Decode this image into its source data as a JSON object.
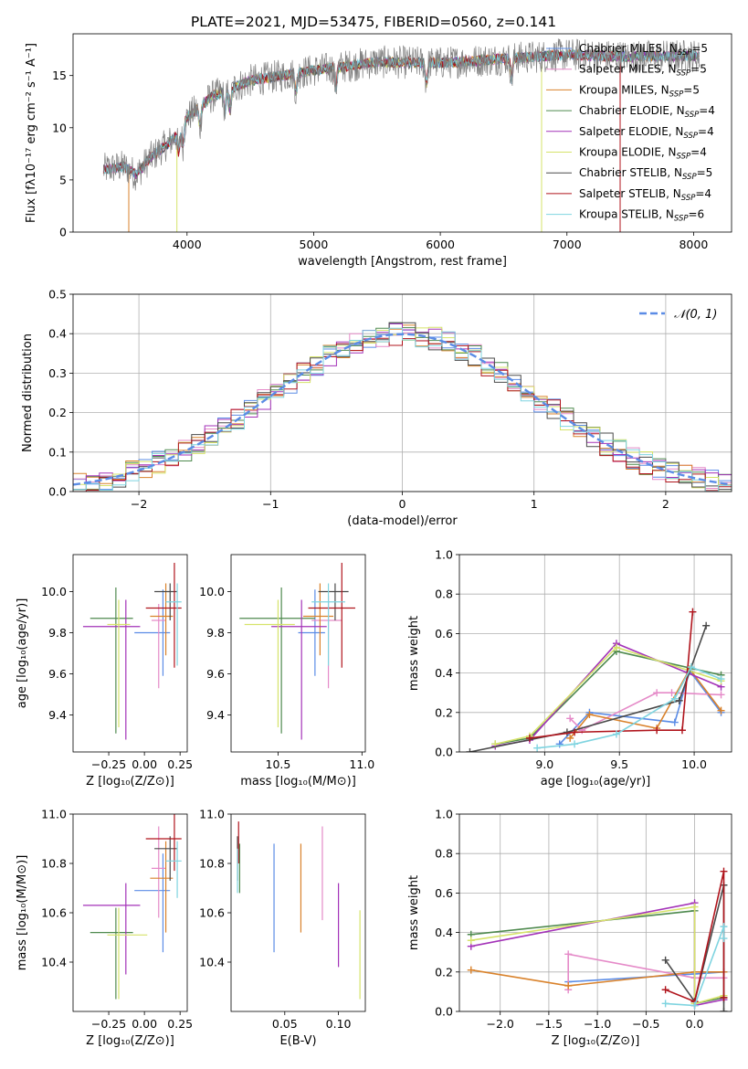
{
  "title": "PLATE=2021, MJD=53475, FIBERID=0560, z=0.141",
  "colors": {
    "chabrier_miles": "#5b8ce6",
    "salpeter_miles": "#e58ac8",
    "kroupa_miles": "#d9822b",
    "chabrier_elodie": "#4f8a4f",
    "salpeter_elodie": "#a332b8",
    "kroupa_elodie": "#d6e36a",
    "chabrier_stelib": "#4a4a4a",
    "salpeter_stelib": "#b0141c",
    "kroupa_stelib": "#7fd4e0",
    "data_line": "#808080",
    "normal_curve": "#5b8ce6"
  },
  "chart_data": [
    {
      "id": "spectrum",
      "type": "line",
      "title": "PLATE=2021, MJD=53475, FIBERID=0560, z=0.141",
      "xlabel": "wavelength [Angstrom, rest frame]",
      "ylabel": "Flux [fλ10⁻¹⁷ erg cm⁻² s⁻¹ A⁻¹]",
      "xlim": [
        3100,
        8300
      ],
      "ylim": [
        0,
        19
      ],
      "xticks": [
        4000,
        5000,
        6000,
        7000,
        8000
      ],
      "yticks": [
        0,
        5,
        10,
        15
      ],
      "legend_position": "top-right",
      "legend": [
        "Chabrier MILES, N_SSP=5",
        "Salpeter MILES, N_SSP=5",
        "Kroupa MILES, N_SSP=5",
        "Chabrier ELODIE, N_SSP=4",
        "Salpeter ELODIE, N_SSP=4",
        "Kroupa ELODIE, N_SSP=4",
        "Chabrier STELIB, N_SSP=5",
        "Salpeter STELIB, N_SSP=4",
        "Kroupa STELIB, N_SSP=6"
      ],
      "data_continuum": {
        "x": [
          3340,
          3500,
          3600,
          3700,
          3800,
          3900,
          4000,
          4200,
          4500,
          5000,
          5500,
          6000,
          6500,
          7000,
          7500,
          8000,
          8050
        ],
        "y": [
          6.0,
          6.3,
          5.5,
          7.0,
          8.0,
          9.0,
          11.0,
          13.0,
          14.5,
          15.5,
          16.3,
          16.2,
          16.6,
          17.0,
          16.8,
          16.9,
          16.8
        ]
      },
      "model_cutoffs": [
        {
          "series": "Kroupa MILES, N_SSP=5",
          "start": 3540
        },
        {
          "series": "Kroupa ELODIE, N_SSP=4",
          "start": 3920,
          "end": 6800
        },
        {
          "series": "Salpeter STELIB, N_SSP=4",
          "end": 7420
        }
      ],
      "grid": false
    },
    {
      "id": "residuals",
      "type": "line",
      "xlabel": "(data-model)/error",
      "ylabel": "Normed distribution",
      "xlim": [
        -2.5,
        2.5
      ],
      "ylim": [
        0,
        0.5
      ],
      "xticks": [
        -2,
        -1,
        0,
        1,
        2
      ],
      "yticks": [
        0.0,
        0.1,
        0.2,
        0.3,
        0.4,
        0.5
      ],
      "legend_position": "top-right",
      "legend": [
        "𝒩(0, 1)"
      ],
      "normal_curve": {
        "mean": 0,
        "sigma": 1
      },
      "histograms_bin_width": 0.1,
      "grid": true
    },
    {
      "id": "age_vs_Z",
      "type": "scatter",
      "xlabel": "Z [log₁₀(Z/Z⊙)]",
      "ylabel": "age  [log₁₀(age/yr)]",
      "xlim": [
        -0.5,
        0.3
      ],
      "ylim": [
        9.22,
        10.18
      ],
      "xticks": [
        -0.25,
        0.0,
        0.25
      ],
      "yticks": [
        9.4,
        9.6,
        9.8,
        10.0
      ],
      "points": [
        {
          "series": "Chabrier MILES",
          "x": 0.13,
          "xerr": [
            0.2,
            0.05
          ],
          "y": 9.8,
          "yerr": [
            0.21,
            0.21
          ]
        },
        {
          "series": "Salpeter MILES",
          "x": 0.1,
          "xerr": [
            0.05,
            0.05
          ],
          "y": 9.86,
          "yerr": [
            0.33,
            0.08
          ]
        },
        {
          "series": "Kroupa MILES",
          "x": 0.15,
          "xerr": [
            0.11,
            0.05
          ],
          "y": 9.88,
          "yerr": [
            0.19,
            0.16
          ]
        },
        {
          "series": "Chabrier ELODIE",
          "x": -0.2,
          "xerr": [
            0.18,
            0.12
          ],
          "y": 9.87,
          "yerr": [
            0.56,
            0.15
          ]
        },
        {
          "series": "Salpeter ELODIE",
          "x": -0.13,
          "xerr": [
            0.3,
            0.1
          ],
          "y": 9.83,
          "yerr": [
            0.55,
            0.13
          ]
        },
        {
          "series": "Kroupa ELODIE",
          "x": -0.18,
          "xerr": [
            0.08,
            0.08
          ],
          "y": 9.84,
          "yerr": [
            0.5,
            0.12
          ]
        },
        {
          "series": "Chabrier STELIB",
          "x": 0.18,
          "xerr": [
            0.11,
            0.05
          ],
          "y": 10.0,
          "yerr": [
            0.14,
            0.04
          ]
        },
        {
          "series": "Salpeter STELIB",
          "x": 0.21,
          "xerr": [
            0.2,
            0.05
          ],
          "y": 9.92,
          "yerr": [
            0.29,
            0.22
          ]
        },
        {
          "series": "Kroupa STELIB",
          "x": 0.23,
          "xerr": [
            0.08,
            0.03
          ],
          "y": 9.95,
          "yerr": [
            0.31,
            0.09
          ]
        }
      ]
    },
    {
      "id": "age_vs_mass",
      "type": "scatter",
      "xlabel": "mass [log₁₀(M/M⊙)]",
      "ylabel": "",
      "xlim": [
        10.22,
        11.02
      ],
      "ylim": [
        9.22,
        10.18
      ],
      "xticks": [
        10.5,
        11.0
      ],
      "yticks": [
        9.4,
        9.6,
        9.8,
        10.0
      ],
      "points": [
        {
          "series": "Chabrier MILES",
          "x": 10.72,
          "xerr": [
            0.1,
            0.06
          ],
          "y": 9.8,
          "yerr": [
            0.21,
            0.21
          ]
        },
        {
          "series": "Salpeter MILES",
          "x": 10.8,
          "xerr": [
            0.1,
            0.08
          ],
          "y": 9.86,
          "yerr": [
            0.33,
            0.12
          ]
        },
        {
          "series": "Kroupa MILES",
          "x": 10.75,
          "xerr": [
            0.1,
            0.08
          ],
          "y": 9.88,
          "yerr": [
            0.19,
            0.16
          ]
        },
        {
          "series": "Chabrier ELODIE",
          "x": 10.52,
          "xerr": [
            0.25,
            0.2
          ],
          "y": 9.87,
          "yerr": [
            0.56,
            0.15
          ]
        },
        {
          "series": "Salpeter ELODIE",
          "x": 10.64,
          "xerr": [
            0.18,
            0.15
          ],
          "y": 9.83,
          "yerr": [
            0.55,
            0.13
          ]
        },
        {
          "series": "Kroupa ELODIE",
          "x": 10.5,
          "xerr": [
            0.2,
            0.1
          ],
          "y": 9.84,
          "yerr": [
            0.5,
            0.12
          ]
        },
        {
          "series": "Chabrier STELIB",
          "x": 10.84,
          "xerr": [
            0.1,
            0.08
          ],
          "y": 10.0,
          "yerr": [
            0.14,
            0.04
          ]
        },
        {
          "series": "Salpeter STELIB",
          "x": 10.88,
          "xerr": [
            0.2,
            0.08
          ],
          "y": 9.92,
          "yerr": [
            0.29,
            0.22
          ]
        },
        {
          "series": "Kroupa STELIB",
          "x": 10.8,
          "xerr": [
            0.1,
            0.1
          ],
          "y": 9.95,
          "yerr": [
            0.31,
            0.09
          ]
        }
      ]
    },
    {
      "id": "weight_vs_age",
      "type": "line",
      "xlabel": "age  [log₁₀(age/yr)]",
      "ylabel": "mass weight",
      "xlim": [
        8.43,
        10.25
      ],
      "ylim": [
        0,
        1
      ],
      "xticks": [
        9.0,
        9.5,
        10.0
      ],
      "yticks": [
        0.0,
        0.2,
        0.4,
        0.6,
        0.8,
        1.0
      ],
      "grid": true,
      "series": [
        {
          "name": "Chabrier MILES",
          "x": [
            9.1,
            9.3,
            9.87,
            9.97,
            10.18
          ],
          "y": [
            0.04,
            0.2,
            0.15,
            0.41,
            0.2
          ]
        },
        {
          "name": "Salpeter MILES",
          "x": [
            9.17,
            9.25,
            9.75,
            9.85,
            10.18
          ],
          "y": [
            0.17,
            0.11,
            0.3,
            0.3,
            0.29
          ]
        },
        {
          "name": "Kroupa MILES",
          "x": [
            9.17,
            9.3,
            9.75,
            9.97,
            10.18
          ],
          "y": [
            0.07,
            0.19,
            0.12,
            0.42,
            0.21
          ]
        },
        {
          "name": "Chabrier ELODIE",
          "x": [
            8.67,
            8.9,
            9.48,
            10.18
          ],
          "y": [
            0.04,
            0.07,
            0.51,
            0.39
          ]
        },
        {
          "name": "Salpeter ELODIE",
          "x": [
            8.67,
            8.9,
            9.48,
            10.18
          ],
          "y": [
            0.03,
            0.06,
            0.55,
            0.33
          ]
        },
        {
          "name": "Kroupa ELODIE",
          "x": [
            8.67,
            8.9,
            9.48,
            10.18
          ],
          "y": [
            0.04,
            0.08,
            0.53,
            0.36
          ]
        },
        {
          "name": "Chabrier STELIB",
          "x": [
            8.5,
            9.15,
            9.9,
            10.08
          ],
          "y": [
            0.0,
            0.1,
            0.26,
            0.64
          ]
        },
        {
          "name": "Salpeter STELIB",
          "x": [
            8.9,
            9.2,
            9.75,
            9.92,
            9.99
          ],
          "y": [
            0.07,
            0.1,
            0.11,
            0.11,
            0.71
          ]
        },
        {
          "name": "Kroupa STELIB",
          "x": [
            8.95,
            9.2,
            9.48,
            9.87,
            9.98,
            10.18
          ],
          "y": [
            0.02,
            0.04,
            0.09,
            0.27,
            0.43,
            0.37
          ]
        }
      ]
    },
    {
      "id": "mass_vs_Z",
      "type": "scatter",
      "xlabel": "Z [log₁₀(Z/Z⊙)]",
      "ylabel": "mass [log₁₀(M/M⊙)]",
      "xlim": [
        -0.5,
        0.3
      ],
      "ylim": [
        10.2,
        11.0
      ],
      "xticks": [
        -0.25,
        0.0,
        0.25
      ],
      "yticks": [
        10.4,
        10.6,
        10.8,
        11.0
      ],
      "points": [
        {
          "series": "Chabrier MILES",
          "x": 0.13,
          "xerr": [
            0.2,
            0.05
          ],
          "y": 10.69,
          "yerr": [
            0.25,
            0.15
          ]
        },
        {
          "series": "Salpeter MILES",
          "x": 0.1,
          "xerr": [
            0.05,
            0.05
          ],
          "y": 10.78,
          "yerr": [
            0.2,
            0.17
          ]
        },
        {
          "series": "Kroupa MILES",
          "x": 0.15,
          "xerr": [
            0.11,
            0.05
          ],
          "y": 10.74,
          "yerr": [
            0.22,
            0.15
          ]
        },
        {
          "series": "Chabrier ELODIE",
          "x": -0.2,
          "xerr": [
            0.18,
            0.12
          ],
          "y": 10.52,
          "yerr": [
            0.27,
            0.1
          ]
        },
        {
          "series": "Salpeter ELODIE",
          "x": -0.13,
          "xerr": [
            0.3,
            0.1
          ],
          "y": 10.63,
          "yerr": [
            0.28,
            0.09
          ]
        },
        {
          "series": "Kroupa ELODIE",
          "x": -0.18,
          "xerr": [
            0.08,
            0.2
          ],
          "y": 10.51,
          "yerr": [
            0.26,
            0.11
          ]
        },
        {
          "series": "Chabrier STELIB",
          "x": 0.18,
          "xerr": [
            0.11,
            0.05
          ],
          "y": 10.86,
          "yerr": [
            0.13,
            0.05
          ]
        },
        {
          "series": "Salpeter STELIB",
          "x": 0.21,
          "xerr": [
            0.2,
            0.05
          ],
          "y": 10.9,
          "yerr": [
            0.13,
            0.1
          ]
        },
        {
          "series": "Kroupa STELIB",
          "x": 0.23,
          "xerr": [
            0.08,
            0.03
          ],
          "y": 10.81,
          "yerr": [
            0.15,
            0.08
          ]
        }
      ]
    },
    {
      "id": "mass_vs_ebv",
      "type": "scatter",
      "xlabel": "E(B-V)",
      "ylabel": "",
      "xlim": [
        0.0,
        0.125
      ],
      "ylim": [
        10.2,
        11.0
      ],
      "xticks": [
        0.05,
        0.1
      ],
      "yticks": [
        10.4,
        10.6,
        10.8,
        11.0
      ],
      "points": [
        {
          "series": "Chabrier MILES",
          "x": 0.04,
          "y": 10.69,
          "yerr": [
            0.25,
            0.19
          ]
        },
        {
          "series": "Salpeter MILES",
          "x": 0.085,
          "y": 10.78,
          "yerr": [
            0.21,
            0.17
          ]
        },
        {
          "series": "Kroupa MILES",
          "x": 0.065,
          "y": 10.74,
          "yerr": [
            0.22,
            0.14
          ]
        },
        {
          "series": "Chabrier ELODIE",
          "x": 0.008,
          "y": 10.8,
          "yerr": [
            0.12,
            0.08
          ]
        },
        {
          "series": "Salpeter ELODIE",
          "x": 0.1,
          "y": 10.6,
          "yerr": [
            0.22,
            0.12
          ]
        },
        {
          "series": "Kroupa ELODIE",
          "x": 0.12,
          "y": 10.45,
          "yerr": [
            0.2,
            0.16
          ]
        },
        {
          "series": "Chabrier STELIB",
          "x": 0.006,
          "y": 10.85,
          "yerr": [
            0.12,
            0.06
          ]
        },
        {
          "series": "Salpeter STELIB",
          "x": 0.007,
          "y": 10.9,
          "yerr": [
            0.1,
            0.07
          ]
        },
        {
          "series": "Kroupa STELIB",
          "x": 0.006,
          "y": 10.78,
          "yerr": [
            0.1,
            0.08
          ]
        }
      ]
    },
    {
      "id": "weight_vs_Z",
      "type": "line",
      "xlabel": "Z [log₁₀(Z/Z⊙)]",
      "ylabel": "mass weight",
      "xlim": [
        -2.42,
        0.38
      ],
      "ylim": [
        0,
        1
      ],
      "xticks": [
        -2.0,
        -1.5,
        -1.0,
        -0.5,
        0.0
      ],
      "yticks": [
        0.0,
        0.2,
        0.4,
        0.6,
        0.8,
        1.0
      ],
      "grid": true,
      "series": [
        {
          "name": "Chabrier MILES",
          "x": [
            -1.3,
            0.0,
            0.3
          ],
          "y": [
            0.15,
            0.19,
            0.2
          ]
        },
        {
          "name": "Salpeter MILES",
          "x": [
            -1.3,
            -1.3,
            0.0,
            0.3
          ],
          "y": [
            0.11,
            0.29,
            0.17,
            0.17
          ]
        },
        {
          "name": "Kroupa MILES",
          "x": [
            -2.3,
            -1.3,
            0.0,
            0.3
          ],
          "y": [
            0.21,
            0.13,
            0.2,
            0.2
          ]
        },
        {
          "name": "Chabrier ELODIE",
          "x": [
            -2.3,
            0.0,
            0.0,
            0.3
          ],
          "y": [
            0.39,
            0.51,
            0.04,
            0.07
          ]
        },
        {
          "name": "Salpeter ELODIE",
          "x": [
            -2.3,
            0.0,
            0.0,
            0.3
          ],
          "y": [
            0.33,
            0.55,
            0.03,
            0.06
          ]
        },
        {
          "name": "Kroupa ELODIE",
          "x": [
            -2.3,
            0.0,
            0.0,
            0.3
          ],
          "y": [
            0.36,
            0.53,
            0.04,
            0.08
          ]
        },
        {
          "name": "Chabrier STELIB",
          "x": [
            -0.3,
            0.0,
            0.3,
            0.3
          ],
          "y": [
            0.26,
            0.05,
            0.64,
            0.0
          ]
        },
        {
          "name": "Salpeter STELIB",
          "x": [
            -0.3,
            0.0,
            0.3,
            0.3
          ],
          "y": [
            0.11,
            0.05,
            0.71,
            0.07
          ]
        },
        {
          "name": "Kroupa STELIB",
          "x": [
            -0.3,
            0.0,
            0.3,
            0.3
          ],
          "y": [
            0.04,
            0.03,
            0.43,
            0.37
          ]
        }
      ]
    }
  ]
}
